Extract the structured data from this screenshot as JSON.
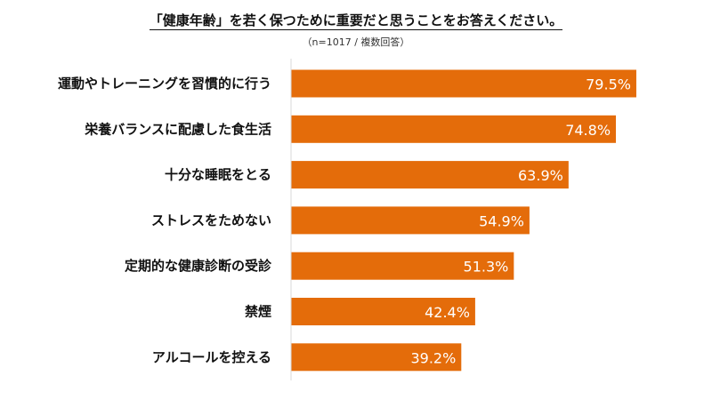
{
  "chart_data": {
    "type": "bar",
    "orientation": "horizontal",
    "title": "「健康年齢」を若く保つために重要だと思うことをお答えください。",
    "subtitle": "（n=1017 / 複数回答）",
    "categories": [
      "運動やトレーニングを習慣的に行う",
      "栄養バランスに配慮した食生活",
      "十分な睡眠をとる",
      "ストレスをためない",
      "定期的な健康診断の受診",
      "禁煙",
      "アルコールを控える"
    ],
    "values": [
      79.5,
      74.8,
      63.9,
      54.9,
      51.3,
      42.4,
      39.2
    ],
    "value_labels": [
      "79.5%",
      "74.8%",
      "63.9%",
      "54.9%",
      "51.3%",
      "42.4%",
      "39.2%"
    ],
    "unit": "%",
    "xlim": [
      0,
      100
    ],
    "grid": false,
    "legend": "none",
    "bar_color": "#E46C0A",
    "axis_color": "#D9D9D9"
  }
}
